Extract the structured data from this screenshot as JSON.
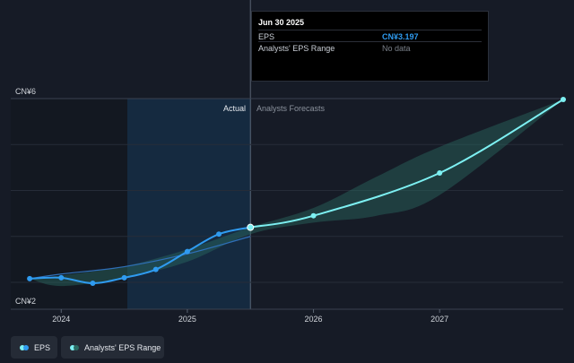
{
  "tooltip": {
    "date": "Jun 30 2025",
    "rows": [
      {
        "label": "EPS",
        "value": "CN¥3.197"
      },
      {
        "label": "Analysts' EPS Range",
        "value": "No data"
      }
    ]
  },
  "legend": {
    "eps": "EPS",
    "range": "Analysts' EPS Range"
  },
  "chart_data": {
    "type": "line",
    "ylim": [
      2,
      6
    ],
    "xlim": [
      2023.6,
      2027.98
    ],
    "y_ticks": [
      {
        "value": 6,
        "label": "CN¥6"
      },
      {
        "value": 2,
        "label": "CN¥2"
      }
    ],
    "x_ticks": [
      {
        "value": 2024,
        "label": "2024"
      },
      {
        "value": 2025,
        "label": "2025"
      },
      {
        "value": 2026,
        "label": "2026"
      },
      {
        "value": 2027,
        "label": "2027"
      }
    ],
    "divider_x": 2025.5,
    "region_labels": {
      "actual": "Actual",
      "forecast": "Analysts Forecasts"
    },
    "series": [
      {
        "name": "EPS",
        "color": "#2f9bf0",
        "points": [
          [
            2023.75,
            2.08
          ],
          [
            2024.0,
            2.1
          ],
          [
            2024.25,
            1.98
          ],
          [
            2024.5,
            2.1
          ],
          [
            2024.75,
            2.28
          ],
          [
            2025.0,
            2.67
          ],
          [
            2025.25,
            3.05
          ],
          [
            2025.5,
            3.197
          ]
        ]
      },
      {
        "name": "Analysts Forecasts",
        "color": "#7df0f2",
        "points": [
          [
            2025.5,
            3.197
          ],
          [
            2026.0,
            3.45
          ],
          [
            2027.0,
            4.38
          ],
          [
            2027.98,
            5.98
          ]
        ]
      }
    ],
    "range_band": {
      "name": "Analysts' EPS Range",
      "color": "#2a6a62",
      "upper": [
        [
          2023.75,
          2.08
        ],
        [
          2024.0,
          2.15
        ],
        [
          2024.5,
          2.35
        ],
        [
          2025.0,
          2.72
        ],
        [
          2025.5,
          3.2
        ],
        [
          2026.0,
          3.62
        ],
        [
          2026.5,
          4.3
        ],
        [
          2027.0,
          4.95
        ],
        [
          2027.98,
          5.98
        ]
      ],
      "lower": [
        [
          2027.98,
          5.98
        ],
        [
          2027.0,
          3.9
        ],
        [
          2026.5,
          3.45
        ],
        [
          2026.0,
          3.3
        ],
        [
          2025.5,
          3.05
        ],
        [
          2025.0,
          2.45
        ],
        [
          2024.5,
          2.1
        ],
        [
          2024.0,
          1.92
        ],
        [
          2023.75,
          2.08
        ]
      ]
    },
    "eps_underlay": [
      [
        2023.75,
        2.08
      ],
      [
        2024.0,
        2.18
      ],
      [
        2024.5,
        2.34
      ],
      [
        2025.0,
        2.62
      ],
      [
        2025.5,
        3.0
      ]
    ]
  }
}
